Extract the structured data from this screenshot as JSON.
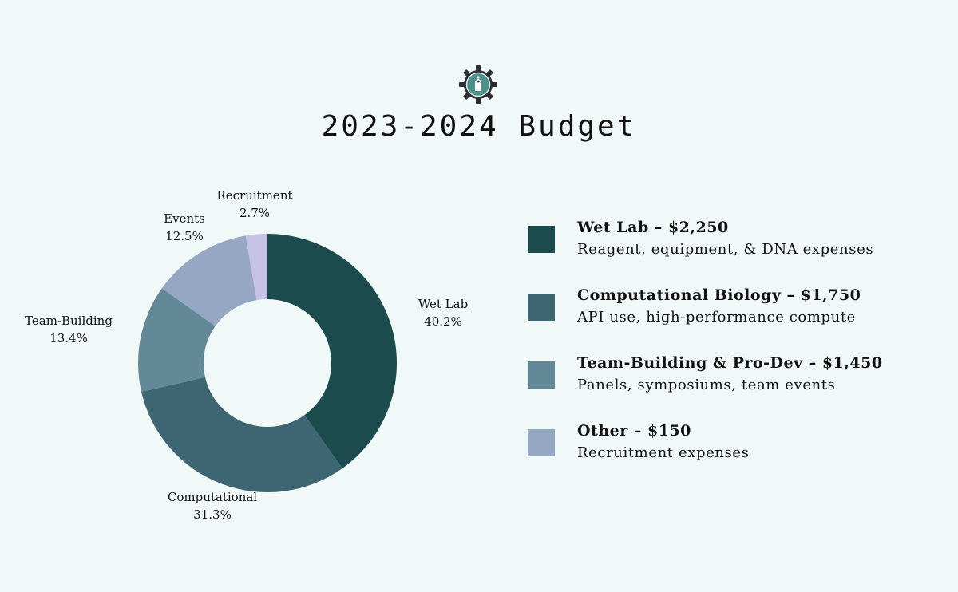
{
  "title": "2023-2024 Budget",
  "logo_icon": "gear-dna-icon",
  "colors": {
    "background": "#f1f9f8",
    "wet_lab": "#1c4b4e",
    "computational": "#3d6672",
    "team_building": "#638897",
    "events": "#96a7c4",
    "recruitment": "#c6c1e5"
  },
  "chart_data": {
    "type": "pie",
    "variant": "donut",
    "categories": [
      "Wet Lab",
      "Computational",
      "Team-Building",
      "Events",
      "Recruitment"
    ],
    "values": [
      40.2,
      31.3,
      13.4,
      12.5,
      2.7
    ],
    "unit": "%",
    "labels": [
      {
        "name": "Wet Lab",
        "value": "40.2%"
      },
      {
        "name": "Computational",
        "value": "31.3%"
      },
      {
        "name": "Team-Building",
        "value": "13.4%"
      },
      {
        "name": "Events",
        "value": "12.5%"
      },
      {
        "name": "Recruitment",
        "value": "2.7%"
      }
    ],
    "colors": [
      "#1c4b4e",
      "#3d6672",
      "#638897",
      "#96a7c4",
      "#c6c1e5"
    ]
  },
  "legend": [
    {
      "heading": "Wet Lab – $2,250",
      "description": "Reagent, equipment, & DNA expenses",
      "color": "#1c4b4e"
    },
    {
      "heading": "Computational Biology – $1,750",
      "description": "API use, high-performance compute",
      "color": "#3d6672"
    },
    {
      "heading": "Team-Building & Pro-Dev – $1,450",
      "description": "Panels, symposiums, team events",
      "color": "#638897"
    },
    {
      "heading": "Other – $150",
      "description": "Recruitment expenses",
      "color": "#96a7c4"
    }
  ]
}
